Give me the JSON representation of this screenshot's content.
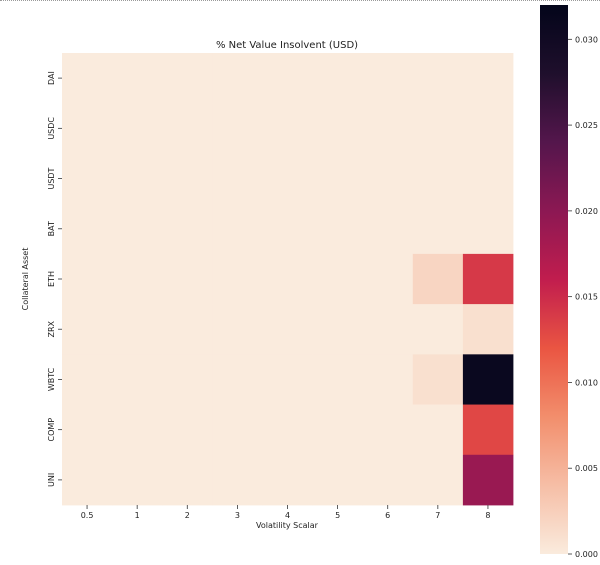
{
  "chart_data": {
    "type": "heatmap",
    "title": "% Net Value Insolvent (USD)",
    "xlabel": "Volatility Scalar",
    "ylabel": "Collateral Asset",
    "x": [
      "0.5",
      "1",
      "2",
      "3",
      "4",
      "5",
      "6",
      "7",
      "8"
    ],
    "y": [
      "DAI",
      "USDC",
      "USDT",
      "BAT",
      "ETH",
      "ZRX",
      "WBTC",
      "COMP",
      "UNI"
    ],
    "values": [
      [
        0,
        0,
        0,
        0,
        0,
        0,
        0,
        0,
        0
      ],
      [
        0,
        0,
        0,
        0,
        0,
        0,
        0,
        0,
        0
      ],
      [
        0,
        0,
        0,
        0,
        0,
        0,
        0,
        0,
        0
      ],
      [
        0,
        0,
        0,
        0,
        0,
        0,
        0,
        0,
        0
      ],
      [
        0,
        0,
        0,
        0,
        0,
        0,
        0,
        0.002,
        0.014
      ],
      [
        0,
        0,
        0,
        0,
        0,
        0,
        0,
        0,
        0.001
      ],
      [
        0,
        0,
        0,
        0,
        0,
        0,
        0,
        0.001,
        0.031
      ],
      [
        0,
        0,
        0,
        0,
        0,
        0,
        0,
        0,
        0.013
      ],
      [
        0,
        0,
        0,
        0,
        0,
        0,
        0,
        0,
        0.019
      ]
    ],
    "colorbar": {
      "range": [
        0,
        0.032
      ],
      "ticks": [
        "0.000",
        "0.005",
        "0.010",
        "0.015",
        "0.020",
        "0.025",
        "0.030"
      ],
      "colors": [
        "#faebdd",
        "#f6bea6",
        "#f28e6c",
        "#ea5542",
        "#c11d4e",
        "#8c1853",
        "#54164c",
        "#1f0f2c",
        "#03051a"
      ]
    }
  }
}
